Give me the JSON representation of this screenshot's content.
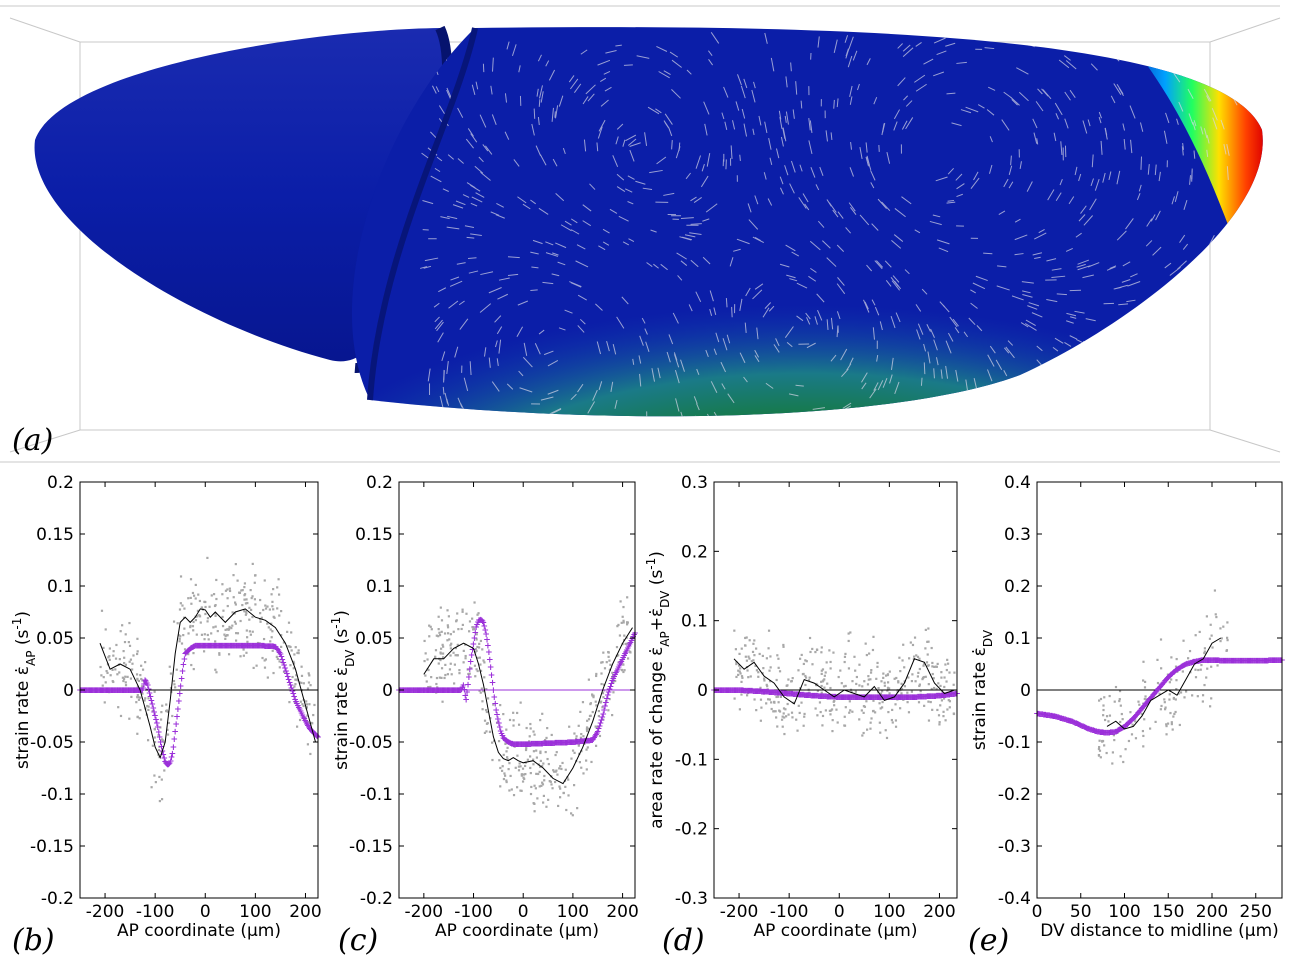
{
  "panels": {
    "a_label": "(a)",
    "b_label": "(b)",
    "c_label": "(c)",
    "d_label": "(d)",
    "e_label": "(e)"
  },
  "colors": {
    "model": "#9b30d9",
    "data_points": "#a8a8a8",
    "smoothed": "#000000",
    "embryo_blue": "#0a1fa0",
    "embryo_green": "#0a6e0a",
    "embryo_red": "#dd0000"
  },
  "chart_data": [
    {
      "panel": "b",
      "type": "scatter",
      "xlabel": "AP coordinate (µm)",
      "ylabel_parts": [
        "strain rate ε̇",
        "AP",
        " (s",
        "-1",
        ")"
      ],
      "xlim": [
        -250,
        225
      ],
      "ylim": [
        -0.2,
        0.2
      ],
      "xticks": [
        -200,
        -100,
        0,
        100,
        200
      ],
      "xtick_labels": [
        "-200",
        "-100",
        "0",
        "100",
        "200"
      ],
      "yticks": [
        -0.2,
        -0.15,
        -0.1,
        -0.05,
        0,
        0.05,
        0.1,
        0.15,
        0.2
      ],
      "ytick_labels": [
        "-0.2",
        "-0.15",
        "-0.1",
        "-0.05",
        "0",
        "0.05",
        "0.1",
        "0.15",
        "0.2"
      ],
      "series": [
        {
          "role": "model",
          "x": [
            -250,
            -200,
            -150,
            -125,
            -120,
            -115,
            -110,
            -105,
            -100,
            -95,
            -90,
            -85,
            -80,
            -75,
            -70,
            -65,
            -60,
            -55,
            -50,
            -45,
            -40,
            -30,
            -20,
            0,
            50,
            100,
            140,
            150,
            160,
            170,
            180,
            190,
            200,
            210,
            225
          ],
          "y": [
            0,
            0,
            0,
            0,
            0.01,
            0.005,
            -0.005,
            -0.015,
            -0.025,
            -0.035,
            -0.048,
            -0.06,
            -0.069,
            -0.072,
            -0.07,
            -0.06,
            -0.04,
            -0.02,
            0,
            0.02,
            0.035,
            0.04,
            0.043,
            0.043,
            0.043,
            0.043,
            0.042,
            0.035,
            0.02,
            0.005,
            -0.01,
            -0.02,
            -0.03,
            -0.038,
            -0.045
          ]
        },
        {
          "role": "smoothed",
          "x": [
            -210,
            -190,
            -170,
            -150,
            -130,
            -110,
            -100,
            -90,
            -80,
            -70,
            -60,
            -50,
            -40,
            -30,
            -20,
            -10,
            0,
            10,
            20,
            40,
            60,
            80,
            100,
            120,
            140,
            160,
            180,
            200,
            220
          ],
          "y": [
            0.045,
            0.02,
            0.025,
            0.02,
            0.0,
            -0.035,
            -0.055,
            -0.065,
            -0.05,
            -0.01,
            0.035,
            0.065,
            0.07,
            0.065,
            0.07,
            0.078,
            0.077,
            0.07,
            0.075,
            0.065,
            0.075,
            0.078,
            0.07,
            0.067,
            0.06,
            0.045,
            0.02,
            -0.015,
            -0.05
          ]
        }
      ]
    },
    {
      "panel": "c",
      "type": "scatter",
      "xlabel": "AP coordinate (µm)",
      "ylabel_parts": [
        "strain rate ε̇",
        "DV",
        " (s",
        "-1",
        ")"
      ],
      "xlim": [
        -250,
        225
      ],
      "ylim": [
        -0.2,
        0.2
      ],
      "xticks": [
        -200,
        -100,
        0,
        100,
        200
      ],
      "xtick_labels": [
        "-200",
        "-100",
        "0",
        "100",
        "200"
      ],
      "yticks": [
        -0.2,
        -0.15,
        -0.1,
        -0.05,
        0,
        0.05,
        0.1,
        0.15,
        0.2
      ],
      "ytick_labels": [
        "-0.2",
        "-0.15",
        "-0.1",
        "-0.05",
        "0",
        "0.05",
        "0.1",
        "0.15",
        "0.2"
      ],
      "series": [
        {
          "role": "model",
          "x": [
            -250,
            -200,
            -150,
            -125,
            -120,
            -115,
            -110,
            -105,
            -100,
            -95,
            -90,
            -85,
            -80,
            -75,
            -70,
            -65,
            -60,
            -55,
            -50,
            -45,
            -40,
            -30,
            -20,
            0,
            50,
            100,
            140,
            150,
            160,
            170,
            180,
            190,
            200,
            210,
            225
          ],
          "y": [
            0,
            0,
            0,
            0,
            0.005,
            -0.01,
            0.01,
            0.03,
            0.045,
            0.06,
            0.067,
            0.068,
            0.065,
            0.055,
            0.04,
            0.02,
            0.0,
            -0.018,
            -0.03,
            -0.04,
            -0.046,
            -0.05,
            -0.052,
            -0.052,
            -0.051,
            -0.05,
            -0.048,
            -0.04,
            -0.025,
            -0.005,
            0.01,
            0.02,
            0.03,
            0.04,
            0.055
          ]
        },
        {
          "role": "smoothed",
          "x": [
            -200,
            -180,
            -160,
            -140,
            -120,
            -100,
            -90,
            -80,
            -70,
            -60,
            -50,
            -40,
            -30,
            -20,
            -10,
            0,
            20,
            40,
            60,
            80,
            100,
            120,
            140,
            160,
            180,
            200,
            220
          ],
          "y": [
            0.015,
            0.03,
            0.03,
            0.04,
            0.045,
            0.04,
            0.025,
            0.005,
            -0.02,
            -0.045,
            -0.06,
            -0.066,
            -0.068,
            -0.065,
            -0.068,
            -0.07,
            -0.068,
            -0.075,
            -0.085,
            -0.09,
            -0.075,
            -0.055,
            -0.03,
            0.0,
            0.025,
            0.045,
            0.06
          ]
        }
      ]
    },
    {
      "panel": "d",
      "type": "scatter",
      "xlabel": "AP coordinate (µm)",
      "ylabel_parts": [
        "area rate of change ε̇",
        "AP",
        "+ε̇",
        "DV",
        " (s",
        "-1",
        ")"
      ],
      "xlim": [
        -250,
        235
      ],
      "ylim": [
        -0.3,
        0.3
      ],
      "xticks": [
        -200,
        -100,
        0,
        100,
        200
      ],
      "xtick_labels": [
        "-200",
        "-100",
        "0",
        "100",
        "200"
      ],
      "yticks": [
        -0.3,
        -0.2,
        -0.1,
        0,
        0.1,
        0.2,
        0.3
      ],
      "ytick_labels": [
        "-0.3",
        "-0.2",
        "-0.1",
        "0",
        "0.1",
        "0.2",
        "0.3"
      ],
      "series": [
        {
          "role": "model",
          "x": [
            -250,
            -200,
            -150,
            -100,
            -50,
            0,
            50,
            100,
            150,
            200,
            235
          ],
          "y": [
            0,
            0,
            -0.002,
            -0.005,
            -0.008,
            -0.01,
            -0.01,
            -0.01,
            -0.01,
            -0.008,
            -0.005
          ]
        },
        {
          "role": "smoothed",
          "x": [
            -210,
            -190,
            -170,
            -150,
            -130,
            -110,
            -90,
            -70,
            -50,
            -30,
            -10,
            10,
            30,
            50,
            70,
            90,
            110,
            130,
            150,
            170,
            190,
            210,
            230
          ],
          "y": [
            0.045,
            0.03,
            0.04,
            0.02,
            0.01,
            -0.01,
            -0.02,
            0.015,
            0.01,
            0.0,
            -0.01,
            0.0,
            -0.005,
            -0.01,
            0.005,
            -0.015,
            -0.01,
            0.01,
            0.045,
            0.04,
            0.01,
            -0.005,
            0.0
          ]
        }
      ]
    },
    {
      "panel": "e",
      "type": "scatter",
      "xlabel": "DV distance to midline (µm)",
      "ylabel_parts": [
        "strain rate ε̇",
        "DV"
      ],
      "xlim": [
        0,
        280
      ],
      "ylim": [
        -0.4,
        0.4
      ],
      "xticks": [
        0,
        50,
        100,
        150,
        200,
        250
      ],
      "xtick_labels": [
        "0",
        "50",
        "100",
        "150",
        "200",
        "250"
      ],
      "yticks": [
        -0.4,
        -0.3,
        -0.2,
        -0.1,
        0,
        0.1,
        0.2,
        0.3,
        0.4
      ],
      "ytick_labels": [
        "-0.4",
        "-0.3",
        "-0.2",
        "-0.1",
        "0",
        "0.1",
        "0.2",
        "0.3",
        "0.4"
      ],
      "series": [
        {
          "role": "model",
          "x": [
            0,
            20,
            40,
            60,
            70,
            80,
            90,
            100,
            110,
            120,
            130,
            140,
            150,
            160,
            170,
            180,
            190,
            200,
            210,
            220,
            240,
            260,
            280
          ],
          "y": [
            -0.045,
            -0.05,
            -0.06,
            -0.075,
            -0.08,
            -0.082,
            -0.08,
            -0.07,
            -0.055,
            -0.035,
            -0.015,
            0.005,
            0.025,
            0.04,
            0.05,
            0.055,
            0.058,
            0.058,
            0.057,
            0.057,
            0.057,
            0.057,
            0.058
          ]
        },
        {
          "role": "smoothed",
          "x": [
            80,
            90,
            100,
            110,
            120,
            130,
            140,
            150,
            160,
            170,
            180,
            190,
            200,
            210
          ],
          "y": [
            -0.07,
            -0.06,
            -0.075,
            -0.07,
            -0.05,
            -0.02,
            -0.01,
            0.0,
            -0.01,
            0.02,
            0.05,
            0.06,
            0.09,
            0.1
          ]
        }
      ]
    }
  ]
}
